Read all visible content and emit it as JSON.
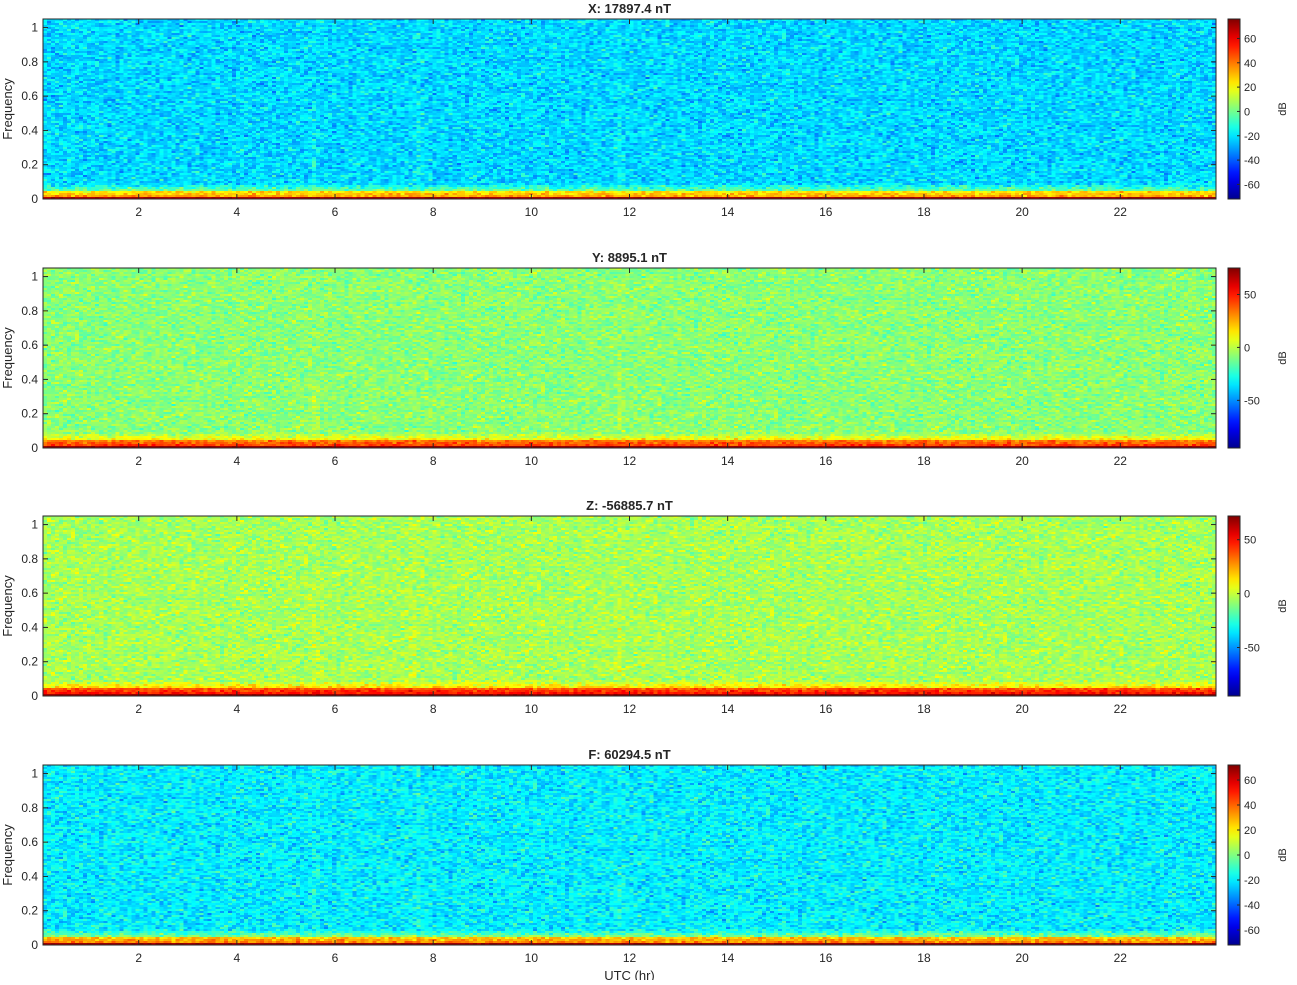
{
  "figure": {
    "xlabel": "UTC (hr)"
  },
  "colormap": {
    "name": "jet",
    "stops": [
      "#00008f",
      "#0000ff",
      "#00ffff",
      "#ffff00",
      "#ff0000",
      "#800000"
    ]
  },
  "chart_data": [
    {
      "type": "heatmap",
      "title": "X: 17897.4 nT",
      "xlabel": "",
      "ylabel": "Frequency",
      "xlim": [
        0.05,
        23.95
      ],
      "ylim": [
        0,
        1.05
      ],
      "xticks": [
        2,
        4,
        6,
        8,
        10,
        12,
        14,
        16,
        18,
        20,
        22
      ],
      "yticks": [
        0,
        0.2,
        0.4,
        0.6,
        0.8,
        1
      ],
      "colorbar": {
        "label": "dB",
        "clim": [
          -72,
          76
        ],
        "ticks": [
          -60,
          -40,
          -20,
          0,
          20,
          40,
          60
        ]
      },
      "background_db": -22,
      "low_band_db": 20,
      "baseline_db": 70,
      "features": [
        {
          "hour": 5.6,
          "note": "vertical streak"
        },
        {
          "hour": 7.7,
          "note": "vertical streak"
        },
        {
          "hour": 11.8,
          "note": "vertical streak"
        }
      ]
    },
    {
      "type": "heatmap",
      "title": "Y: 8895.1 nT",
      "xlabel": "",
      "ylabel": "Frequency",
      "xlim": [
        0.05,
        23.95
      ],
      "ylim": [
        0,
        1.05
      ],
      "xticks": [
        2,
        4,
        6,
        8,
        10,
        12,
        14,
        16,
        18,
        20,
        22
      ],
      "yticks": [
        0,
        0.2,
        0.4,
        0.6,
        0.8,
        1
      ],
      "colorbar": {
        "label": "dB",
        "clim": [
          -95,
          75
        ],
        "ticks": [
          -50,
          0,
          50
        ]
      },
      "background_db": -8,
      "low_band_db": 30,
      "baseline_db": 70,
      "features": [
        {
          "hour": 5.6,
          "note": "vertical streak"
        },
        {
          "hour": 11.8,
          "note": "vertical streak"
        }
      ]
    },
    {
      "type": "heatmap",
      "title": "Z: -56885.7 nT",
      "xlabel": "",
      "ylabel": "Frequency",
      "xlim": [
        0.05,
        23.95
      ],
      "ylim": [
        0,
        1.05
      ],
      "xticks": [
        2,
        4,
        6,
        8,
        10,
        12,
        14,
        16,
        18,
        20,
        22
      ],
      "yticks": [
        0,
        0.2,
        0.4,
        0.6,
        0.8,
        1
      ],
      "colorbar": {
        "label": "dB",
        "clim": [
          -95,
          72
        ],
        "ticks": [
          -50,
          0,
          50
        ]
      },
      "background_db": -5,
      "low_band_db": 35,
      "baseline_db": 68,
      "features": [
        {
          "hour": 5.6,
          "note": "vertical streak"
        },
        {
          "hour": 7.6,
          "note": "vertical streak"
        },
        {
          "hour": 11.8,
          "note": "vertical streak"
        }
      ]
    },
    {
      "type": "heatmap",
      "title": "F: 60294.5 nT",
      "xlabel": "UTC (hr)",
      "ylabel": "Frequency",
      "xlim": [
        0.05,
        23.95
      ],
      "ylim": [
        0,
        1.05
      ],
      "xticks": [
        2,
        4,
        6,
        8,
        10,
        12,
        14,
        16,
        18,
        20,
        22
      ],
      "yticks": [
        0,
        0.2,
        0.4,
        0.6,
        0.8,
        1
      ],
      "colorbar": {
        "label": "dB",
        "clim": [
          -72,
          72
        ],
        "ticks": [
          -60,
          -40,
          -20,
          0,
          20,
          40,
          60
        ]
      },
      "background_db": -20,
      "low_band_db": 22,
      "baseline_db": 68,
      "features": [
        {
          "hour": 5.6,
          "note": "vertical streak"
        },
        {
          "hour": 7.7,
          "note": "vertical streak"
        },
        {
          "hour": 11.8,
          "note": "vertical streak"
        }
      ]
    }
  ]
}
